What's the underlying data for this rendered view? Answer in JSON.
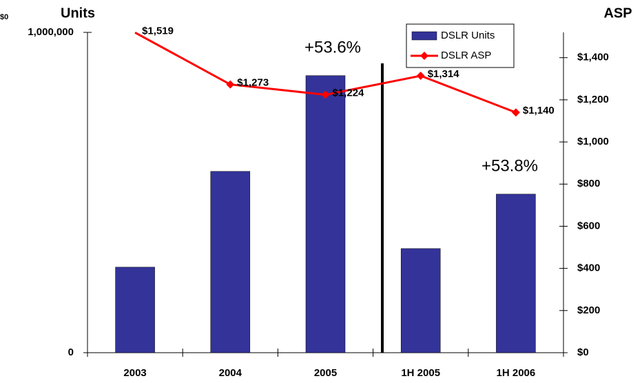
{
  "chart_data": {
    "type": "bar",
    "corner_label": "$0",
    "y_title": "Units",
    "y2_title": "ASP",
    "categories": [
      "2003",
      "2004",
      "2005",
      "1H 2005",
      "1H 2006"
    ],
    "series": [
      {
        "name": "DSLR Units",
        "type": "bar",
        "color": "#333399",
        "values": [
          267000,
          566000,
          865000,
          325000,
          495000
        ]
      },
      {
        "name": "DSLR ASP",
        "type": "line",
        "axis": "y2",
        "color": "#ff0000",
        "values": [
          1519,
          1273,
          1224,
          1314,
          1140
        ],
        "value_labels": [
          "$1,519",
          "$1,273",
          "$1,224",
          "$1,314",
          "$1,140"
        ]
      }
    ],
    "annotations": [
      "+53.6%",
      "+53.8%"
    ],
    "ylim": [
      0,
      1000000
    ],
    "yticks": [
      0,
      {
        "value": 1000000,
        "label": "1,000,000"
      }
    ],
    "y2lim": [
      0,
      1520
    ],
    "y2ticks": [
      {
        "value": 0,
        "label": "$0"
      },
      {
        "value": 200,
        "label": "$200"
      },
      {
        "value": 400,
        "label": "$400"
      },
      {
        "value": 600,
        "label": "$600"
      },
      {
        "value": 800,
        "label": "$800"
      },
      {
        "value": 1000,
        "label": "$1,000"
      },
      {
        "value": 1200,
        "label": "$1,200"
      },
      {
        "value": 1400,
        "label": "$1,400"
      }
    ],
    "legend": "top-right",
    "grid": false
  }
}
